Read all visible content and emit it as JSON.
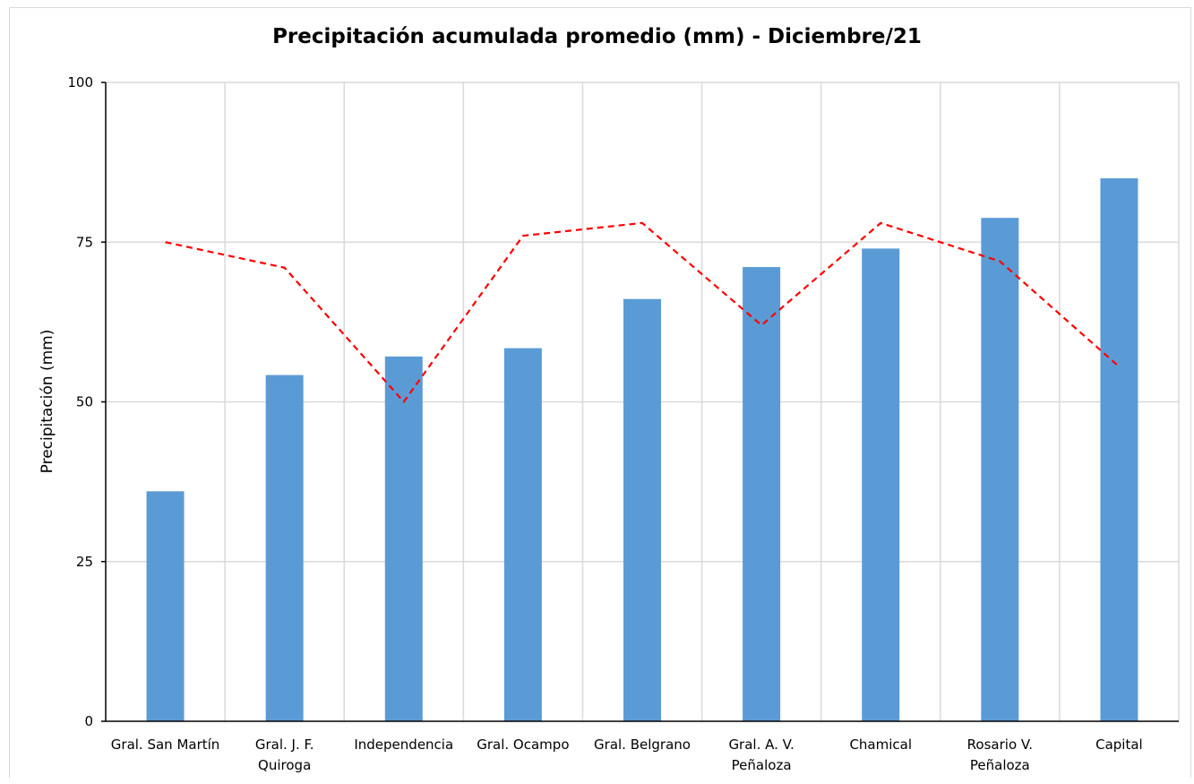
{
  "chart_data": {
    "type": "bar",
    "title": "Precipitación acumulada promedio (mm) - Diciembre/21",
    "xlabel": "",
    "ylabel": "Precipitación (mm)",
    "ylim": [
      0,
      100
    ],
    "yticks": [
      "0",
      "25",
      "50",
      "75",
      "100"
    ],
    "grid": true,
    "categories": [
      [
        "Gral. San Martín"
      ],
      [
        "Gral. J. F.",
        "Quiroga"
      ],
      [
        "Independencia"
      ],
      [
        "Gral. Ocampo"
      ],
      [
        "Gral. Belgrano"
      ],
      [
        "Gral. A. V.",
        "Peñaloza"
      ],
      [
        "Chamical"
      ],
      [
        "Rosario V.",
        "Peñaloza"
      ],
      [
        "Capital"
      ]
    ],
    "series": [
      {
        "type": "bar",
        "color": "#5b9bd5",
        "values": [
          36,
          54.2,
          57.1,
          58.4,
          66.1,
          71.1,
          74,
          78.8,
          85
        ]
      },
      {
        "type": "line",
        "style": "dashed",
        "color": "#ff0000",
        "values": [
          75,
          71,
          50,
          76,
          78,
          62,
          78,
          72,
          55.5
        ]
      }
    ]
  }
}
